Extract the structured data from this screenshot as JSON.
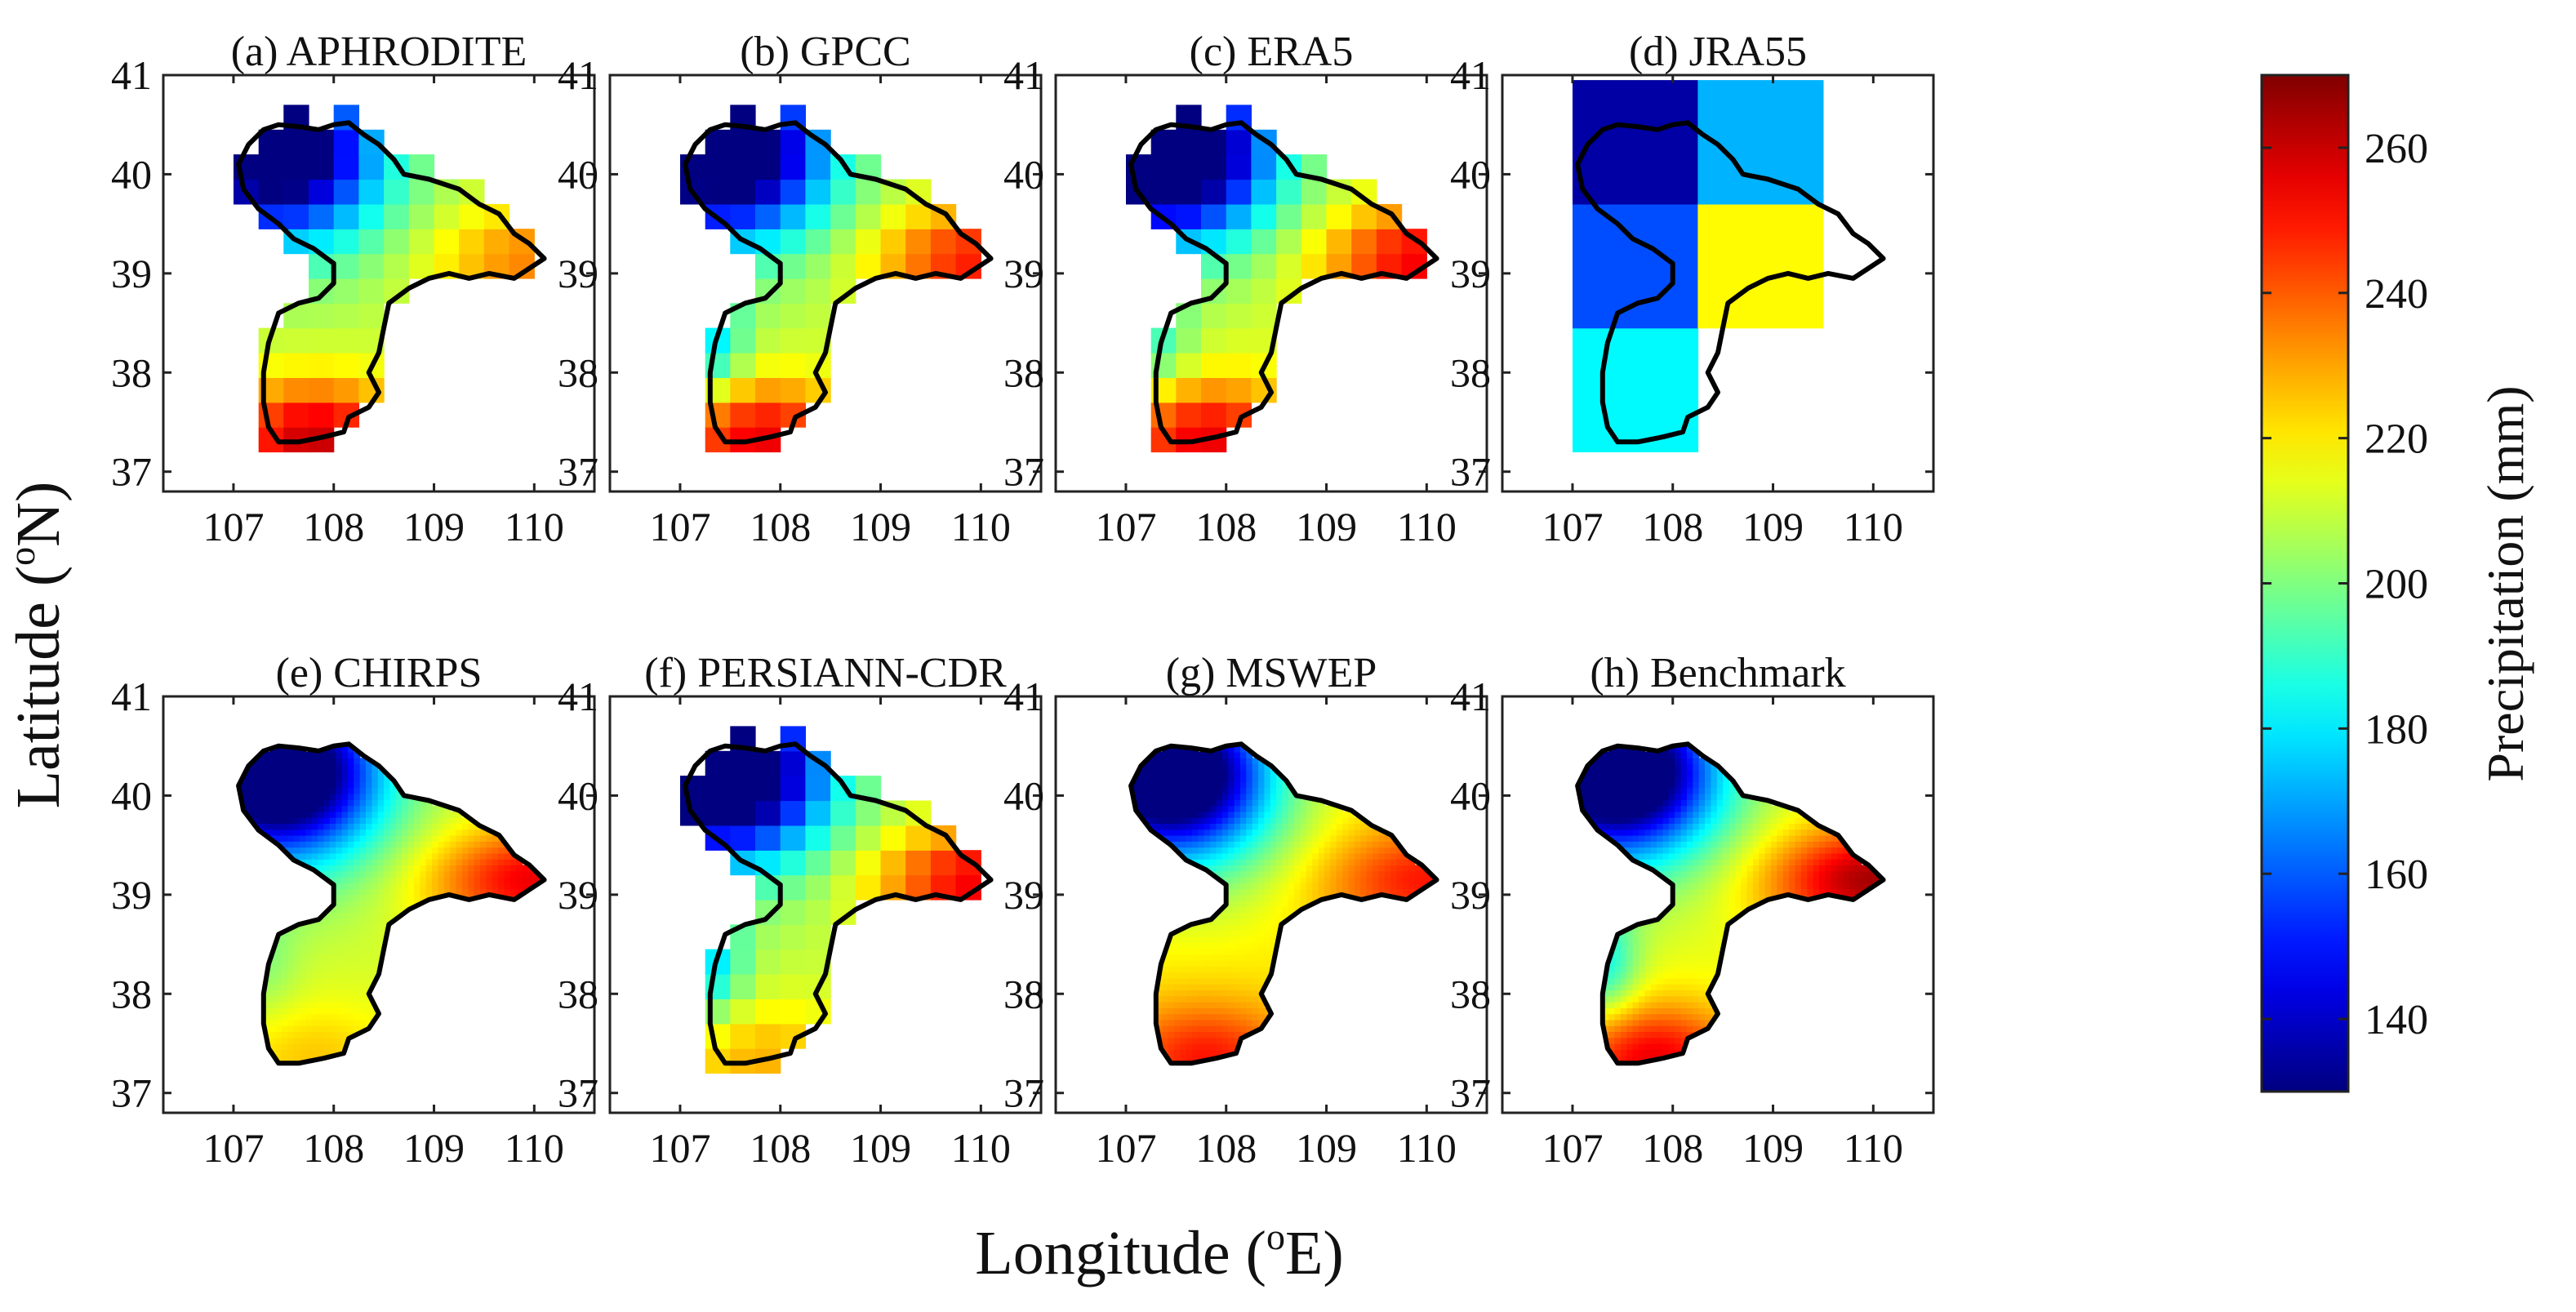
{
  "chart_data": {
    "type": "heatmap",
    "xlabel": "Longitude (",
    "xlabel_sup": "o",
    "xlabel_tail": "E)",
    "ylabel": "Latitude (",
    "ylabel_sup": "o",
    "ylabel_tail": "N)",
    "xlim": [
      106.3,
      110.6
    ],
    "ylim": [
      36.8,
      41.0
    ],
    "x_ticks": [
      107,
      108,
      109,
      110
    ],
    "y_ticks": [
      41,
      40,
      39,
      38,
      37
    ],
    "colorbar": {
      "label": "Precipitation (mm)",
      "range": [
        130,
        270
      ],
      "ticks": [
        260,
        240,
        220,
        200,
        180,
        160,
        140
      ],
      "colormap": "jet"
    },
    "panels": [
      {
        "title": "(a) APHRODITE",
        "resolution": 0.25,
        "field": {
          "base": 210,
          "west": 150,
          "northwest": 115,
          "east": 235,
          "south": 260,
          "southwest_yellow": 0,
          "upper_shift": 0
        }
      },
      {
        "title": "(b) GPCC",
        "resolution": 0.25,
        "field": {
          "base": 210,
          "west": 155,
          "northwest": 105,
          "east": 250,
          "south": 255,
          "southwest_yellow": 30,
          "upper_shift": 0
        }
      },
      {
        "title": "(c) ERA5",
        "resolution": 0.25,
        "field": {
          "base": 212,
          "west": 150,
          "northwest": 100,
          "east": 255,
          "south": 255,
          "southwest_yellow": 20,
          "upper_shift": 0
        }
      },
      {
        "title": "(d) JRA55",
        "resolution": 1.25,
        "field": {
          "base": 220,
          "west": 150,
          "northwest": 100,
          "east": 265,
          "south": 0,
          "southwest_yellow": 0,
          "upper_shift": 0
        }
      },
      {
        "title": "(e) CHIRPS",
        "resolution": 0.05,
        "field": {
          "base": 212,
          "west": 155,
          "northwest": 100,
          "east": 255,
          "south": 225,
          "southwest_yellow": 10,
          "upper_shift": 0
        }
      },
      {
        "title": "(f) PERSIANN-CDR",
        "resolution": 0.25,
        "field": {
          "base": 210,
          "west": 155,
          "northwest": 100,
          "east": 255,
          "south": 228,
          "southwest_yellow": 30,
          "upper_shift": 0
        }
      },
      {
        "title": "(g) MSWEP",
        "resolution": 0.1,
        "field": {
          "base": 220,
          "west": 150,
          "northwest": 105,
          "east": 250,
          "south": 250,
          "southwest_yellow": 0,
          "upper_shift": 0
        }
      },
      {
        "title": "(h) Benchmark",
        "resolution": 0.02,
        "field": {
          "base": 215,
          "west": 160,
          "northwest": 100,
          "east": 265,
          "south": 255,
          "southwest_yellow": 30,
          "upper_shift": 0
        }
      }
    ],
    "basin_outline_lonlat": [
      [
        107.1,
        39.85
      ],
      [
        107.05,
        40.1
      ],
      [
        107.15,
        40.3
      ],
      [
        107.3,
        40.45
      ],
      [
        107.45,
        40.5
      ],
      [
        107.65,
        40.48
      ],
      [
        107.85,
        40.45
      ],
      [
        108.0,
        40.5
      ],
      [
        108.15,
        40.52
      ],
      [
        108.3,
        40.4
      ],
      [
        108.45,
        40.3
      ],
      [
        108.6,
        40.15
      ],
      [
        108.7,
        40.0
      ],
      [
        108.95,
        39.95
      ],
      [
        109.25,
        39.85
      ],
      [
        109.45,
        39.7
      ],
      [
        109.65,
        39.6
      ],
      [
        109.8,
        39.4
      ],
      [
        109.95,
        39.3
      ],
      [
        110.1,
        39.15
      ],
      [
        109.95,
        39.05
      ],
      [
        109.8,
        38.95
      ],
      [
        109.55,
        39.0
      ],
      [
        109.35,
        38.95
      ],
      [
        109.15,
        39.0
      ],
      [
        108.95,
        38.95
      ],
      [
        108.75,
        38.85
      ],
      [
        108.55,
        38.7
      ],
      [
        108.5,
        38.45
      ],
      [
        108.45,
        38.2
      ],
      [
        108.35,
        38.0
      ],
      [
        108.45,
        37.8
      ],
      [
        108.35,
        37.65
      ],
      [
        108.15,
        37.55
      ],
      [
        108.1,
        37.4
      ],
      [
        107.9,
        37.35
      ],
      [
        107.65,
        37.3
      ],
      [
        107.45,
        37.3
      ],
      [
        107.35,
        37.45
      ],
      [
        107.3,
        37.7
      ],
      [
        107.3,
        38.0
      ],
      [
        107.35,
        38.3
      ],
      [
        107.45,
        38.6
      ],
      [
        107.65,
        38.7
      ],
      [
        107.85,
        38.75
      ],
      [
        108.0,
        38.9
      ],
      [
        108.0,
        39.1
      ],
      [
        107.8,
        39.25
      ],
      [
        107.6,
        39.35
      ],
      [
        107.45,
        39.5
      ],
      [
        107.25,
        39.65
      ],
      [
        107.1,
        39.85
      ]
    ]
  }
}
